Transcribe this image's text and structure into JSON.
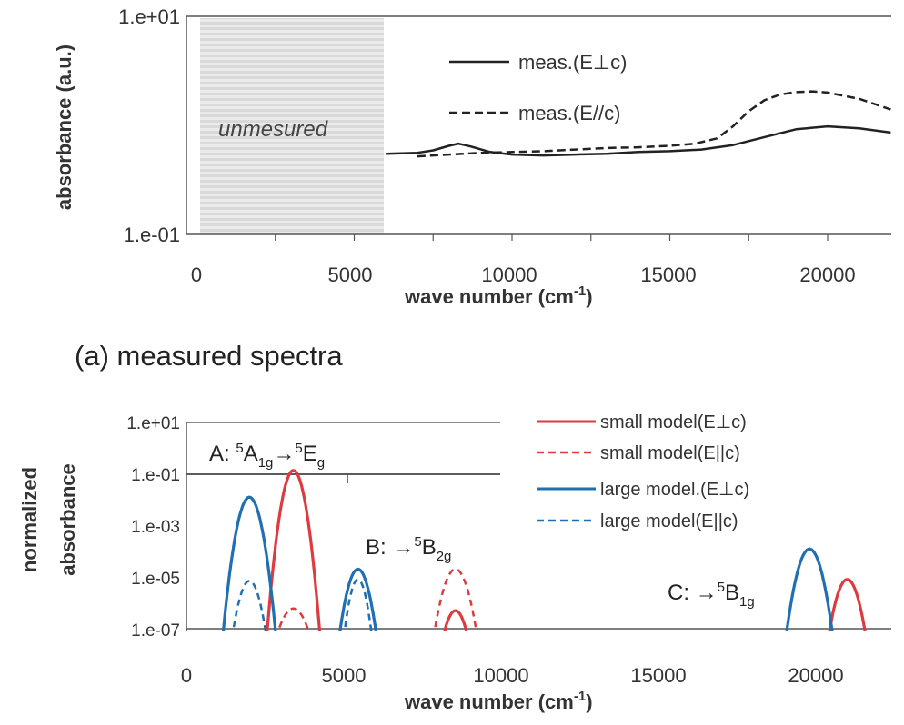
{
  "chart_data": [
    {
      "type": "line",
      "xlabel": "wave number  (cm",
      "xlabel_sup": "-1",
      "xlabel_close": ")",
      "ylabel": "absorbance (a.u.)",
      "yscale": "log",
      "ylim": [
        0.1,
        10
      ],
      "xlim": [
        -500,
        22000
      ],
      "x_ticks": [
        "0",
        "5000",
        "10000",
        "15000",
        "20000"
      ],
      "y_ticks": [
        "1.e+01",
        "1.e-01"
      ],
      "shaded_region": {
        "x": [
          500,
          6000
        ],
        "label": "unmesured"
      },
      "legend_position": "top-right",
      "series": [
        {
          "name": "meas.(E⊥c)",
          "style": "solid",
          "x": [
            6000,
            7000,
            7500,
            8000,
            8300,
            8700,
            9300,
            10000,
            11000,
            12000,
            13000,
            14000,
            15000,
            16000,
            17000,
            18000,
            19000,
            20000,
            21000,
            22000
          ],
          "y": [
            0.55,
            0.56,
            0.59,
            0.65,
            0.68,
            0.64,
            0.57,
            0.54,
            0.53,
            0.54,
            0.55,
            0.57,
            0.58,
            0.6,
            0.66,
            0.78,
            0.92,
            0.98,
            0.94,
            0.86
          ]
        },
        {
          "name": "meas.(E//c)",
          "style": "dashed",
          "x": [
            7000,
            8000,
            9000,
            10000,
            11000,
            12000,
            13000,
            14000,
            15000,
            15800,
            16500,
            17000,
            17500,
            18000,
            18500,
            19000,
            19500,
            20000,
            21000,
            22000
          ],
          "y": [
            0.52,
            0.54,
            0.56,
            0.57,
            0.58,
            0.6,
            0.62,
            0.63,
            0.65,
            0.68,
            0.76,
            0.98,
            1.35,
            1.7,
            1.92,
            2.02,
            2.05,
            2.0,
            1.75,
            1.4
          ]
        }
      ]
    },
    {
      "type": "line",
      "xlabel": "wave number  (cm",
      "xlabel_sup": "-1",
      "xlabel_close": ")",
      "ylabel": [
        "normalized",
        "absorbance"
      ],
      "yscale": "log",
      "ylim": [
        1e-07,
        10
      ],
      "xlim": [
        0,
        22000
      ],
      "x_ticks": [
        "0",
        "5000",
        "10000",
        "15000",
        "20000"
      ],
      "y_ticks": [
        "1.e+01",
        "1.e-01",
        "1.e-03",
        "1.e-05",
        "1.e-07"
      ],
      "legend_position": "top-right",
      "series": [
        {
          "name": "small model(E⊥c)",
          "color": "#dd3b3f",
          "style": "solid",
          "peaks": [
            {
              "center": 3400,
              "half_width": 850,
              "peak": 0.13
            },
            {
              "center": 8550,
              "half_width": 400,
              "peak": 5e-07
            },
            {
              "center": 21000,
              "half_width": 600,
              "peak": 8e-06
            }
          ]
        },
        {
          "name": "small model(E||c)",
          "color": "#dd3b3f",
          "style": "dashed",
          "peaks": [
            {
              "center": 3400,
              "half_width": 550,
              "peak": 6e-07
            },
            {
              "center": 8550,
              "half_width": 700,
              "peak": 2e-05
            }
          ]
        },
        {
          "name": "large model.(E⊥c)",
          "color": "#1f6fb2",
          "style": "solid",
          "peaks": [
            {
              "center": 2000,
              "half_width": 850,
              "peak": 0.012
            },
            {
              "center": 5450,
              "half_width": 600,
              "peak": 2e-05
            },
            {
              "center": 19800,
              "half_width": 750,
              "peak": 0.00012
            }
          ]
        },
        {
          "name": "large model(E||c)",
          "color": "#1f6fb2",
          "style": "dashed",
          "peaks": [
            {
              "center": 2000,
              "half_width": 550,
              "peak": 7e-06
            },
            {
              "center": 5450,
              "half_width": 450,
              "peak": 8e-06
            }
          ]
        }
      ],
      "annotations": [
        {
          "pre": "A: ",
          "sup": "5",
          "main": "A",
          "sub": "1g",
          "arrow": "→",
          "sup2": "5",
          "main2": "E",
          "sub2": "g"
        },
        {
          "pre": "B: →",
          "sup": "5",
          "main": "B",
          "sub": "2g"
        },
        {
          "pre": "C: →",
          "sup": "5",
          "main": "B",
          "sub": "1g"
        }
      ]
    }
  ],
  "captions": [
    "(a)  measured spectra"
  ],
  "colors": {
    "red": "#dd3b3f",
    "blue": "#1f6fb2",
    "black": "#222222"
  }
}
